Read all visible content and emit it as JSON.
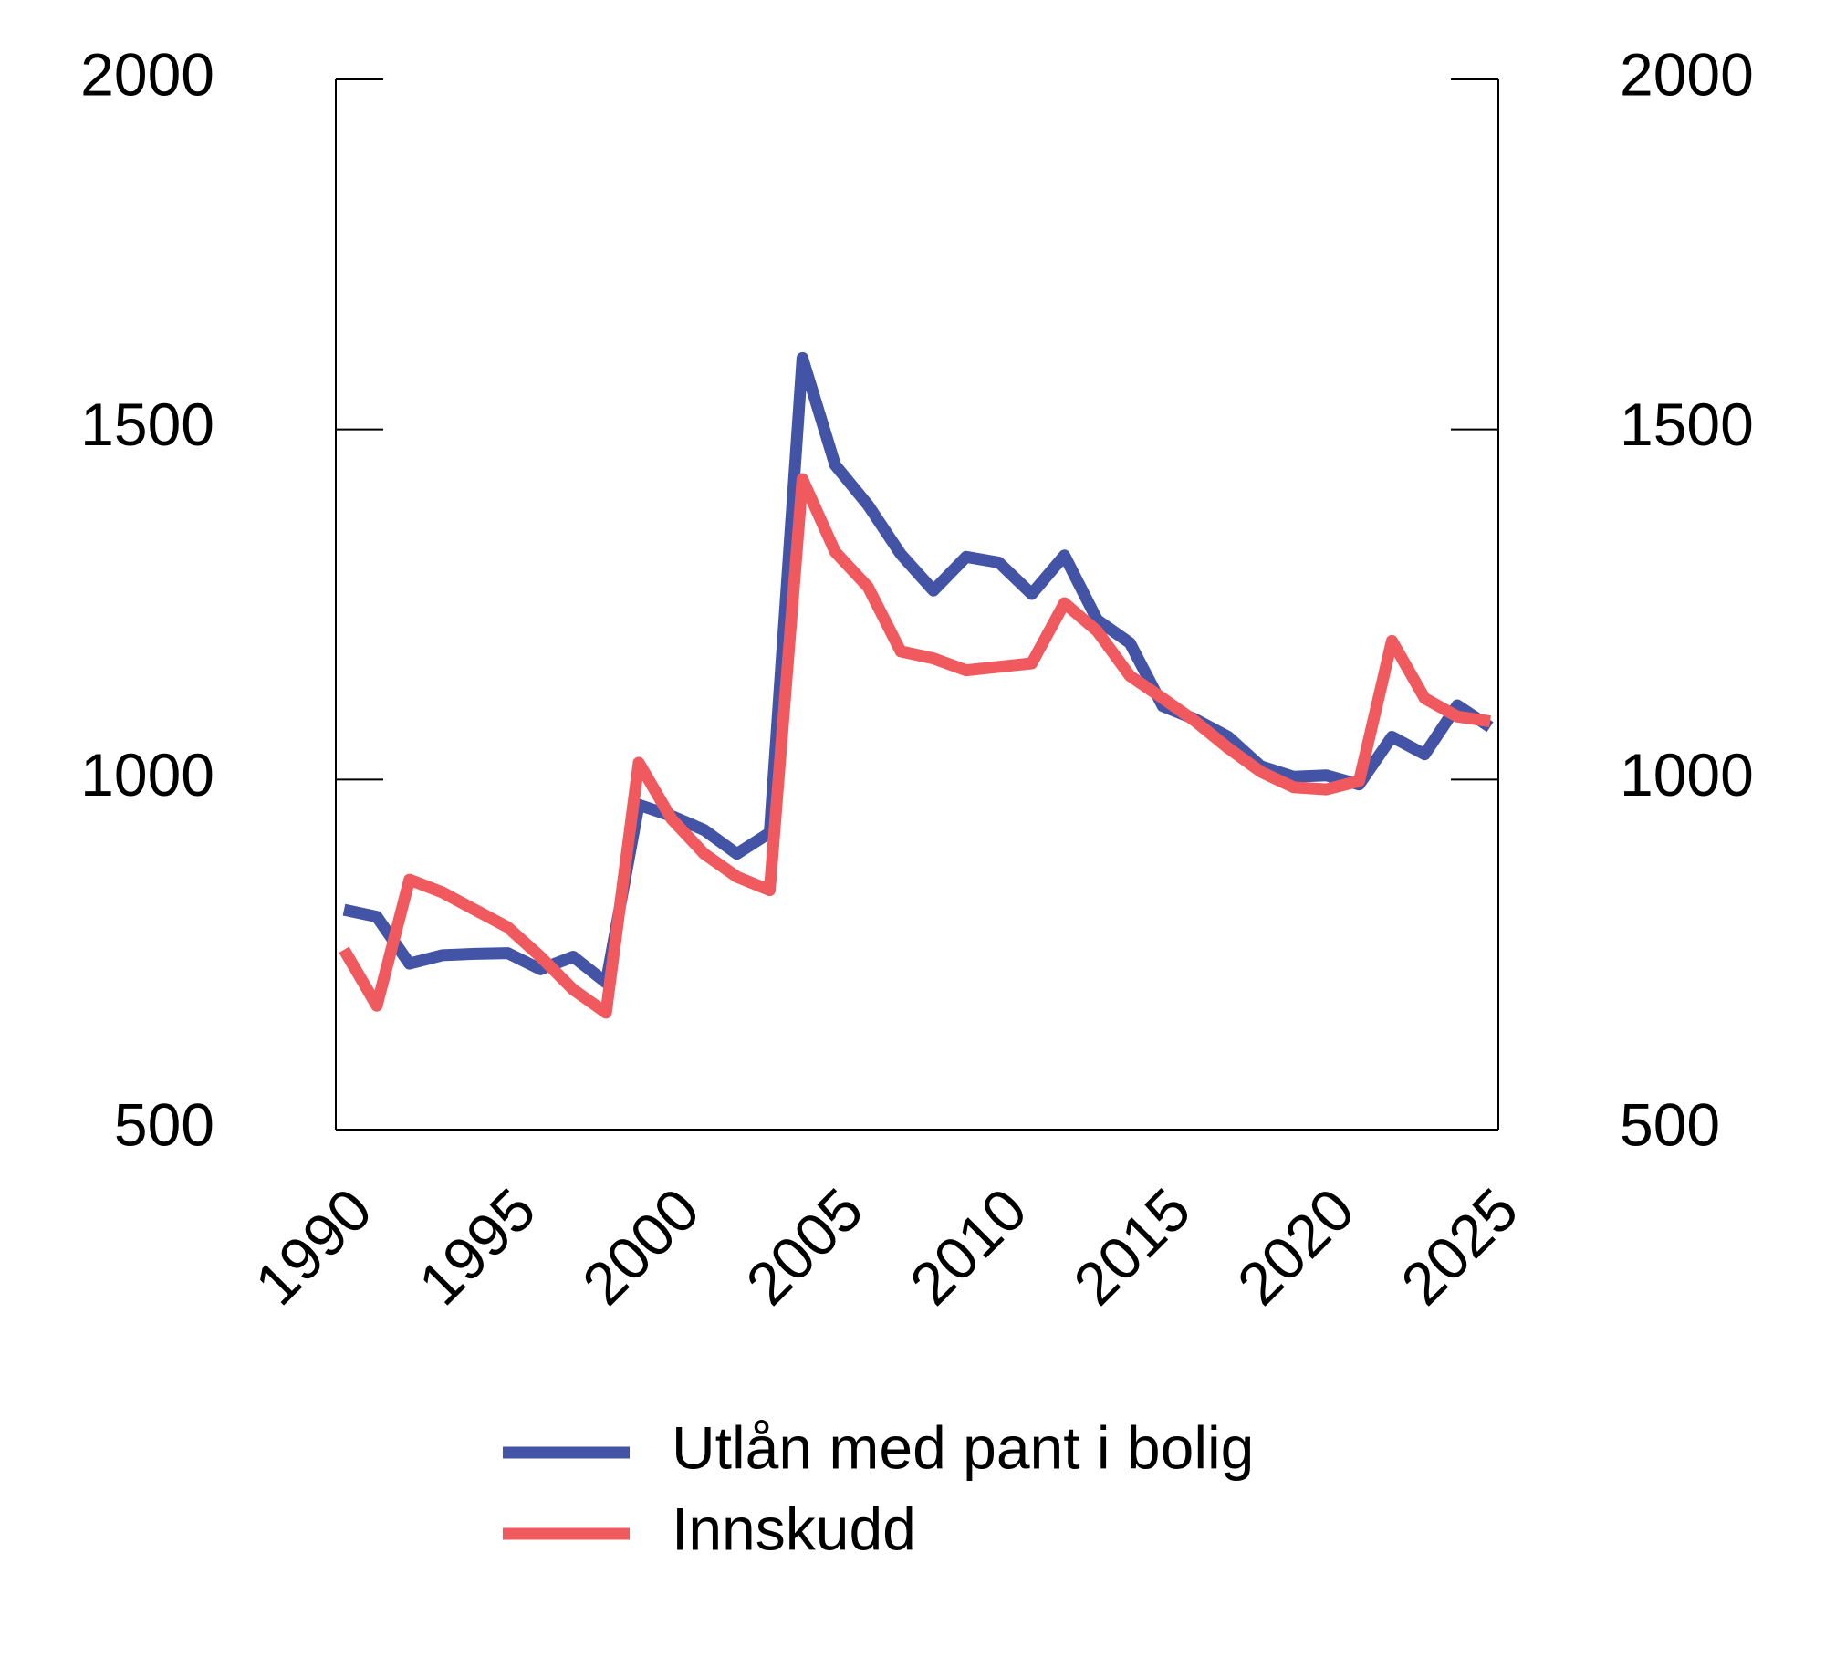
{
  "chart_data": {
    "type": "line",
    "x": [
      1990,
      1991,
      1992,
      1993,
      1994,
      1995,
      1996,
      1997,
      1998,
      1999,
      2000,
      2001,
      2002,
      2003,
      2004,
      2005,
      2006,
      2007,
      2008,
      2009,
      2010,
      2011,
      2012,
      2013,
      2014,
      2015,
      2016,
      2017,
      2018,
      2019,
      2020,
      2021,
      2022,
      2023,
      2024,
      2025
    ],
    "series": [
      {
        "name": "Utlån med pant i bolig",
        "color": "#4353a5",
        "values": [
          814,
          804,
          737,
          749,
          751,
          752,
          729,
          747,
          710,
          964,
          948,
          928,
          894,
          924,
          1602,
          1449,
          1392,
          1322,
          1270,
          1318,
          1310,
          1265,
          1320,
          1228,
          1195,
          1105,
          1086,
          1061,
          1019,
          1004,
          1006,
          993,
          1061,
          1036,
          1106,
          1075
        ]
      },
      {
        "name": "Innskudd",
        "color": "#f05a5f",
        "values": [
          757,
          677,
          857,
          839,
          814,
          789,
          747,
          700,
          667,
          1024,
          944,
          894,
          861,
          842,
          1429,
          1325,
          1275,
          1183,
          1173,
          1156,
          1161,
          1166,
          1252,
          1212,
          1148,
          1116,
          1083,
          1045,
          1011,
          989,
          986,
          998,
          1198,
          1116,
          1090,
          1083
        ]
      }
    ],
    "xlim": [
      1989.75,
      2025.25
    ],
    "xticks": [
      1990,
      1995,
      2000,
      2005,
      2010,
      2015,
      2020,
      2025
    ],
    "ylim": [
      500,
      2000
    ],
    "yticks": [
      500,
      1000,
      1500,
      2000
    ],
    "y2lim": [
      500,
      2000
    ],
    "y2ticks": [
      500,
      1000,
      1500,
      2000
    ]
  }
}
